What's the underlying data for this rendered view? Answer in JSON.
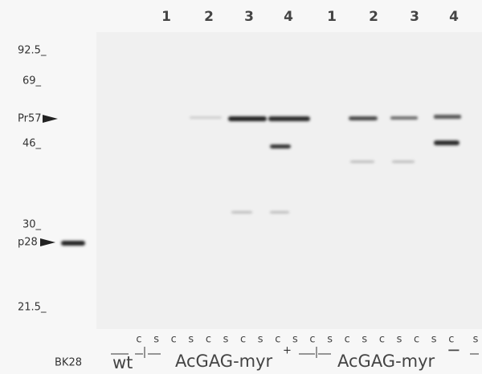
{
  "lane_numbers": [
    "1",
    "2",
    "3",
    "4",
    "1",
    "2",
    "3",
    "4"
  ],
  "markers": [
    "92.5_",
    "69_",
    "Pr57",
    "46_",
    "30_",
    "p28",
    "21.5_"
  ],
  "lane_letters": [
    "c",
    "s",
    "c",
    "s",
    "c",
    "s",
    "c",
    "s",
    "c",
    "s",
    "c",
    "s",
    "c",
    "s",
    "c",
    "s",
    "c",
    "s",
    "c",
    "s"
  ],
  "groups": {
    "control": "BK28",
    "wild_type": "wt",
    "plus_construct": "AcGAG-myr",
    "plus_sign": "+",
    "minus_construct": "AcGAG-myr",
    "minus_sign": "−"
  }
}
